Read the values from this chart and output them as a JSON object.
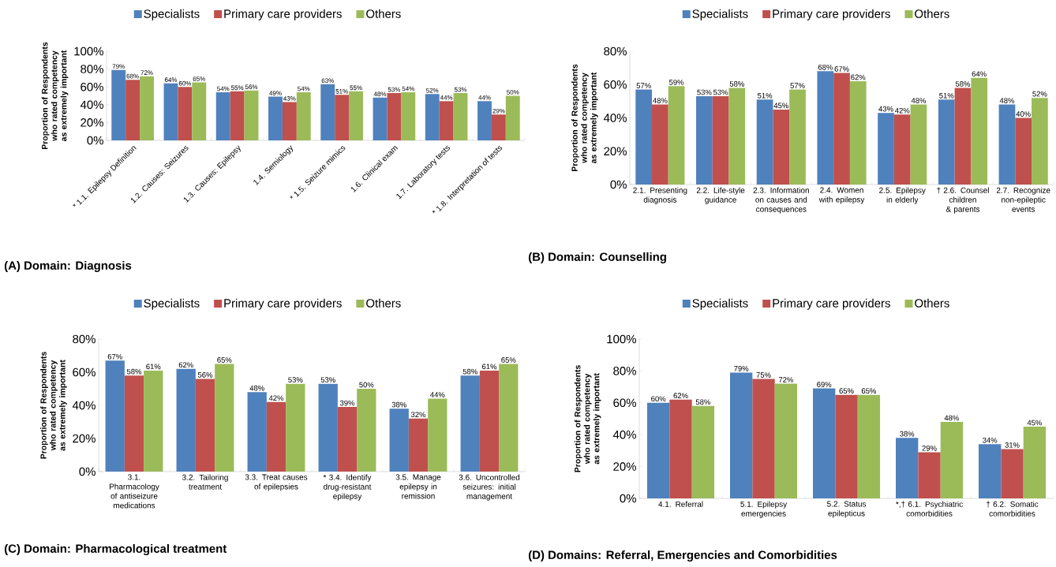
{
  "chart_data": [
    {
      "type": "bar",
      "title": "(A) Domain: Diagnosis",
      "ylabel": "Proportion of Respondents who rated competency as extremely important",
      "categories": [
        "* 1.1. Epilepsy Definition",
        "1.2. Causes: Seizures",
        "1.3. Causes: Epilepsy",
        "1.4. Semiology",
        "* 1.5. Seizure mimics",
        "1.6. Clinical exam",
        "1.7. Laboratory tests",
        "* 1.8. Interpretation of tests"
      ],
      "series": [
        {
          "name": "Specialists",
          "color": "#4f81bd",
          "values": [
            79,
            64,
            54,
            49,
            63,
            48,
            52,
            44
          ],
          "value_labels": [
            "79%",
            "64%",
            "54%",
            "49%",
            "63%",
            "48%",
            "52%",
            "44%"
          ]
        },
        {
          "name": "Primary care providers",
          "color": "#c0504d",
          "values": [
            68,
            60,
            55,
            43,
            51,
            53,
            44,
            29
          ],
          "value_labels": [
            "68%",
            "60%",
            "55%",
            "43%",
            "51%",
            "53%",
            "44%",
            "29%"
          ]
        },
        {
          "name": "Others",
          "color": "#9bbb59",
          "values": [
            72,
            65,
            56,
            54,
            55,
            54,
            53,
            50
          ],
          "value_labels": [
            "72%",
            "65%",
            "56%",
            "54%",
            "55%",
            "54%",
            "53%",
            "50%"
          ]
        }
      ],
      "ylim": [
        0,
        100
      ],
      "yticks": [
        {
          "value": 0,
          "label": "0%"
        },
        {
          "value": 20,
          "label": "20%"
        },
        {
          "value": 40,
          "label": "40%"
        },
        {
          "value": 60,
          "label": "60%"
        },
        {
          "value": 80,
          "label": "80%"
        },
        {
          "value": 100,
          "label": "100%"
        }
      ],
      "legend": "top",
      "grid": false
    },
    {
      "type": "bar",
      "title": "(B) Domain: Counselling",
      "ylabel": "Proportion of Respondents who rated competency as extremely important",
      "categories": [
        "2.1. Presenting diagnosis",
        "2.2. Life-style guidance",
        "2.3. Information on causes and consequences",
        "2.4. Women with epilepsy",
        "2.5. Epilepsy in elderly",
        "† 2.6. Counsel children & parents",
        "2.7. Recognize non-epileptic events"
      ],
      "series": [
        {
          "name": "Specialists",
          "color": "#4f81bd",
          "values": [
            57,
            53,
            51,
            68,
            43,
            51,
            48
          ],
          "value_labels": [
            "57%",
            "53%",
            "51%",
            "68%",
            "43%",
            "51%",
            "48%"
          ]
        },
        {
          "name": "Primary care providers",
          "color": "#c0504d",
          "values": [
            48,
            53,
            45,
            67,
            42,
            58,
            40
          ],
          "value_labels": [
            "48%",
            "53%",
            "45%",
            "67%",
            "42%",
            "58%",
            "40%"
          ]
        },
        {
          "name": "Others",
          "color": "#9bbb59",
          "values": [
            59,
            58,
            57,
            62,
            48,
            64,
            52
          ],
          "value_labels": [
            "59%",
            "58%",
            "57%",
            "62%",
            "48%",
            "64%",
            "52%"
          ]
        }
      ],
      "ylim": [
        0,
        80
      ],
      "yticks": [
        {
          "value": 0,
          "label": "0%"
        },
        {
          "value": 20,
          "label": "20%"
        },
        {
          "value": 40,
          "label": "40%"
        },
        {
          "value": 60,
          "label": "60%"
        },
        {
          "value": 80,
          "label": "80%"
        }
      ],
      "legend": "top",
      "grid": false
    },
    {
      "type": "bar",
      "title": "(C) Domain: Pharmacological treatment",
      "ylabel": "Proportion of Respondents who rated competency as extremely important",
      "categories": [
        "3.1. Pharmacology of antiseizure medications",
        "3.2. Tailoring treatment",
        "3.3. Treat causes of epilepsies",
        "* 3.4. Identify drug-resistant epilepsy",
        "3.5. Manage epilepsy in remission",
        "3.6. Uncontrolled seizures: initial management"
      ],
      "series": [
        {
          "name": "Specialists",
          "color": "#4f81bd",
          "values": [
            67,
            62,
            48,
            53,
            38,
            58
          ],
          "value_labels": [
            "67%",
            "62%",
            "48%",
            "53%",
            "38%",
            "58%"
          ]
        },
        {
          "name": "Primary care providers",
          "color": "#c0504d",
          "values": [
            58,
            56,
            42,
            39,
            32,
            61
          ],
          "value_labels": [
            "58%",
            "56%",
            "42%",
            "39%",
            "32%",
            "61%"
          ]
        },
        {
          "name": "Others",
          "color": "#9bbb59",
          "values": [
            61,
            65,
            53,
            50,
            44,
            65
          ],
          "value_labels": [
            "61%",
            "65%",
            "53%",
            "50%",
            "44%",
            "65%"
          ]
        }
      ],
      "ylim": [
        0,
        80
      ],
      "yticks": [
        {
          "value": 0,
          "label": "0%"
        },
        {
          "value": 20,
          "label": "20%"
        },
        {
          "value": 40,
          "label": "40%"
        },
        {
          "value": 60,
          "label": "60%"
        },
        {
          "value": 80,
          "label": "80%"
        }
      ],
      "legend": "top",
      "grid": false
    },
    {
      "type": "bar",
      "title": "(D) Domains: Referral, Emergencies and Comorbidities",
      "ylabel": "Proportion of Respondents who rated competency as extremely important",
      "categories": [
        "4.1. Referral",
        "5.1. Epilepsy emergencies",
        "5.2. Status epilepticus",
        "*,† 6.1. Psychiatric comorbidities",
        "† 6.2. Somatic comorbidities"
      ],
      "series": [
        {
          "name": "Specialists",
          "color": "#4f81bd",
          "values": [
            60,
            79,
            69,
            38,
            34
          ],
          "value_labels": [
            "60%",
            "79%",
            "69%",
            "38%",
            "34%"
          ]
        },
        {
          "name": "Primary care providers",
          "color": "#c0504d",
          "values": [
            62,
            75,
            65,
            29,
            31
          ],
          "value_labels": [
            "62%",
            "75%",
            "65%",
            "29%",
            "31%"
          ]
        },
        {
          "name": "Others",
          "color": "#9bbb59",
          "values": [
            58,
            72,
            65,
            48,
            45
          ],
          "value_labels": [
            "58%",
            "72%",
            "65%",
            "48%",
            "45%"
          ]
        }
      ],
      "ylim": [
        0,
        100
      ],
      "yticks": [
        {
          "value": 0,
          "label": "0%"
        },
        {
          "value": 20,
          "label": "20%"
        },
        {
          "value": 40,
          "label": "40%"
        },
        {
          "value": 60,
          "label": "60%"
        },
        {
          "value": 80,
          "label": "80%"
        },
        {
          "value": 100,
          "label": "100%"
        }
      ],
      "legend": "top",
      "grid": false
    }
  ]
}
